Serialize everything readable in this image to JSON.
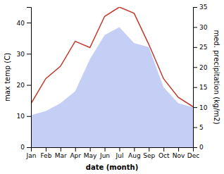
{
  "chart_data": {
    "type": "line",
    "categories": [
      "Jan",
      "Feb",
      "Mar",
      "Apr",
      "May",
      "Jun",
      "Jul",
      "Aug",
      "Sep",
      "Oct",
      "Nov",
      "Dec"
    ],
    "xlabel": "date (month)",
    "ylabel": "max temp (C)",
    "y2label": "med. precipitation (kg/m2)",
    "ylim": [
      0,
      45
    ],
    "yticks": [
      0,
      10,
      20,
      30,
      40
    ],
    "y2lim": [
      0,
      35
    ],
    "y2ticks": [
      0,
      5,
      10,
      15,
      20,
      25,
      30,
      35
    ],
    "series": [
      {
        "type": "area",
        "axis": "y2",
        "color": "#c5cff5",
        "values": [
          8,
          9,
          11,
          14,
          22,
          28,
          30,
          26,
          25,
          15,
          11,
          10
        ]
      },
      {
        "type": "line",
        "color": "#c0392b",
        "values": [
          14,
          22,
          26,
          34,
          32,
          42,
          45,
          43,
          33,
          22,
          16,
          13
        ]
      }
    ]
  }
}
